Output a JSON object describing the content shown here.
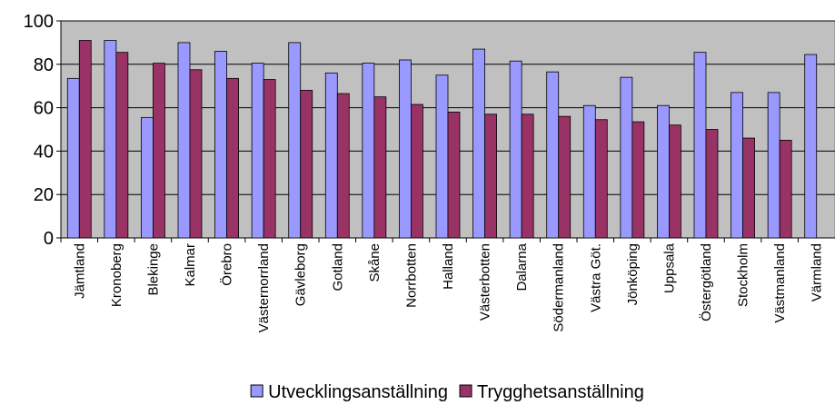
{
  "chart_data": {
    "type": "bar",
    "categories": [
      "Jämtland",
      "Kronoberg",
      "Blekinge",
      "Kalmar",
      "Örebro",
      "Västernorrland",
      "Gävleborg",
      "Gotland",
      "Skåne",
      "Norrbotten",
      "Halland",
      "Västerbotten",
      "Dalarna",
      "Södermanland",
      "Västra Göt.",
      "Jönköping",
      "Uppsala",
      "Östergötland",
      "Stockholm",
      "Västmanland",
      "Värmland"
    ],
    "series": [
      {
        "name": "Utvecklingsanställning",
        "color": "#9999ff",
        "values": [
          73.5,
          91,
          55.5,
          90,
          86,
          80.5,
          90,
          76,
          80.5,
          82,
          75,
          87,
          81.5,
          76.5,
          61,
          74,
          61,
          85.5,
          67,
          67,
          84.5
        ]
      },
      {
        "name": "Trygghetsanställning",
        "color": "#993366",
        "values": [
          91,
          85.5,
          80.5,
          77.5,
          73.5,
          73,
          68,
          66.5,
          65,
          61.5,
          58,
          57,
          57,
          56,
          54.5,
          53.5,
          52,
          50,
          46,
          45,
          null
        ]
      }
    ],
    "ylim": [
      0,
      100
    ],
    "yticks": [
      0,
      20,
      40,
      60,
      80,
      100
    ],
    "grid": true,
    "plot_background": "#c0c0c0",
    "legend": "bottom"
  }
}
